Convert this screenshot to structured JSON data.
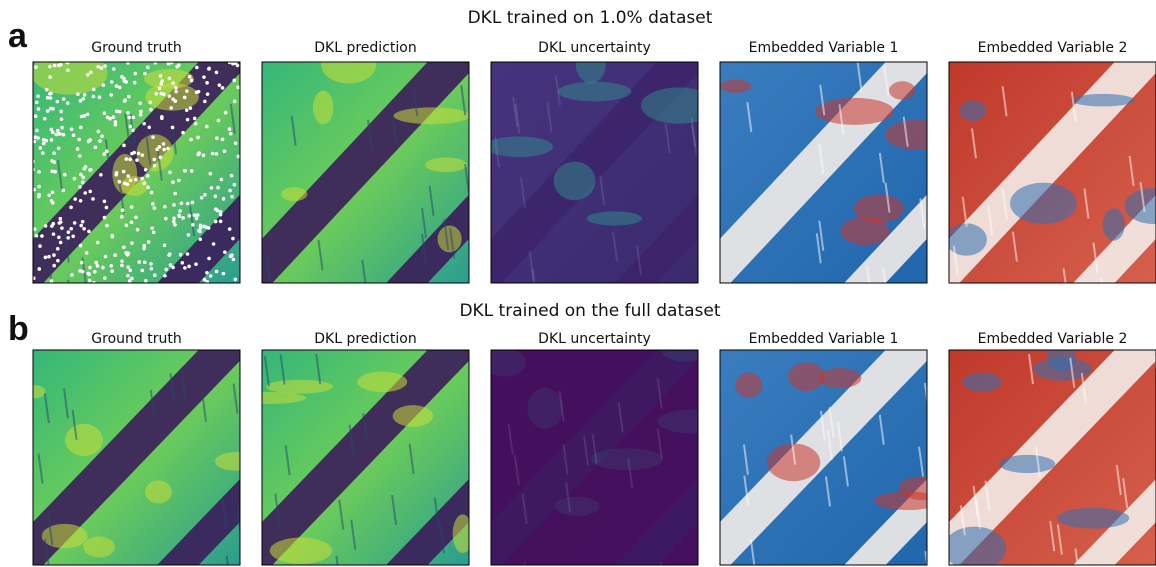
{
  "panels": [
    {
      "label": "a",
      "title": "DKL trained on 1.0% dataset",
      "subplots": [
        "Ground truth",
        "DKL prediction",
        "DKL uncertainty",
        "Embedded Variable 1",
        "Embedded Variable 2"
      ]
    },
    {
      "label": "b",
      "title": "DKL trained on the full dataset",
      "subplots": [
        "Ground truth",
        "DKL prediction",
        "DKL uncertainty",
        "Embedded Variable 1",
        "Embedded Variable 2"
      ]
    }
  ]
}
